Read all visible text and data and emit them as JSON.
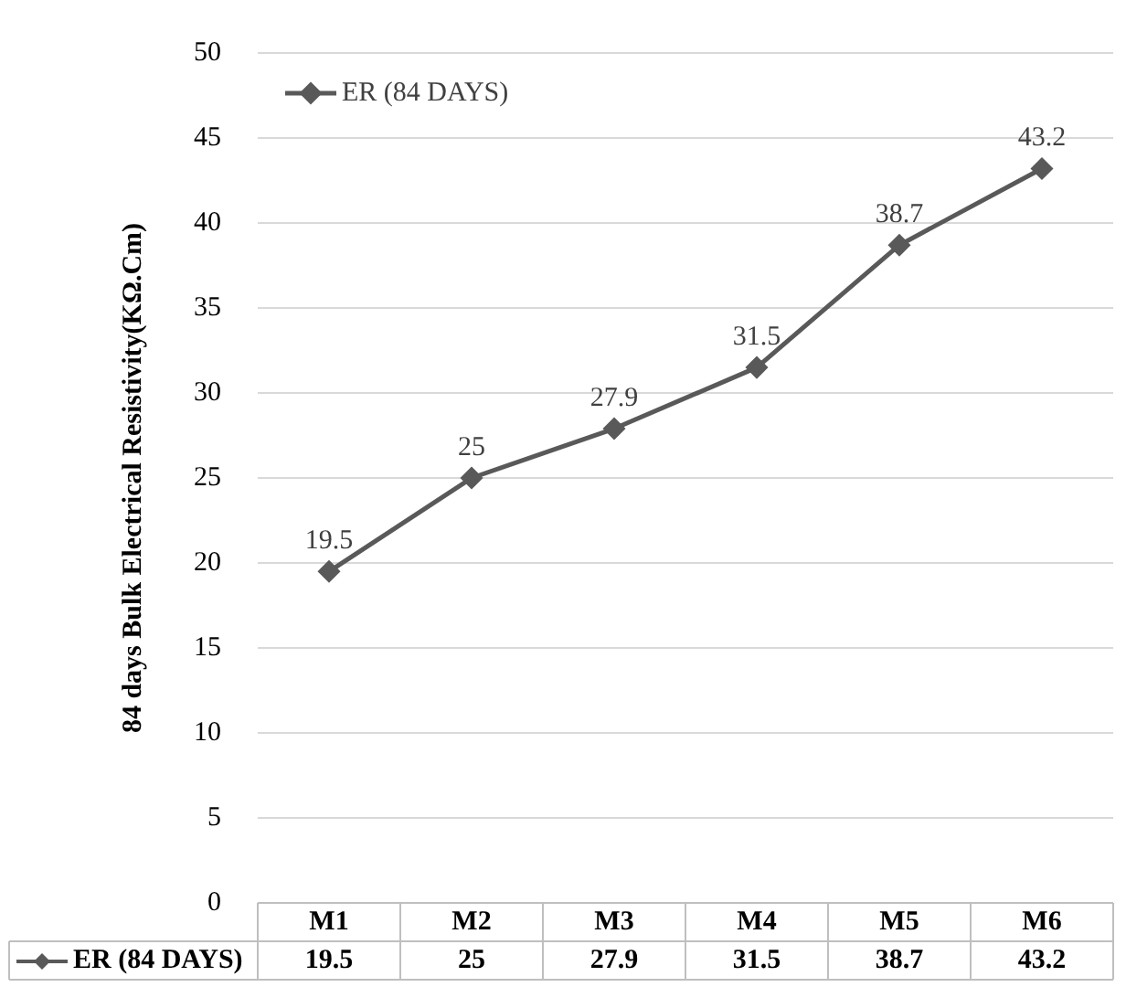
{
  "chart_data": {
    "type": "line",
    "ylabel": "84 days Bulk Electrical Resistivity(KΩ.Cm)",
    "categories": [
      "M1",
      "M2",
      "M3",
      "M4",
      "M5",
      "M6"
    ],
    "series": [
      {
        "name": "ER (84 DAYS)",
        "color": "#595959",
        "values": [
          19.5,
          25,
          27.9,
          31.5,
          38.7,
          43.2
        ]
      }
    ],
    "annotations": [
      "19.5",
      "25",
      "27.9",
      "31.5",
      "38.7",
      "43.2"
    ],
    "ylim": [
      0,
      50
    ],
    "yticks": [
      0,
      5,
      10,
      15,
      20,
      25,
      30,
      35,
      40,
      45,
      50
    ],
    "grid": "y",
    "legend": "top left",
    "marker": "diamond",
    "data_labels": true
  }
}
